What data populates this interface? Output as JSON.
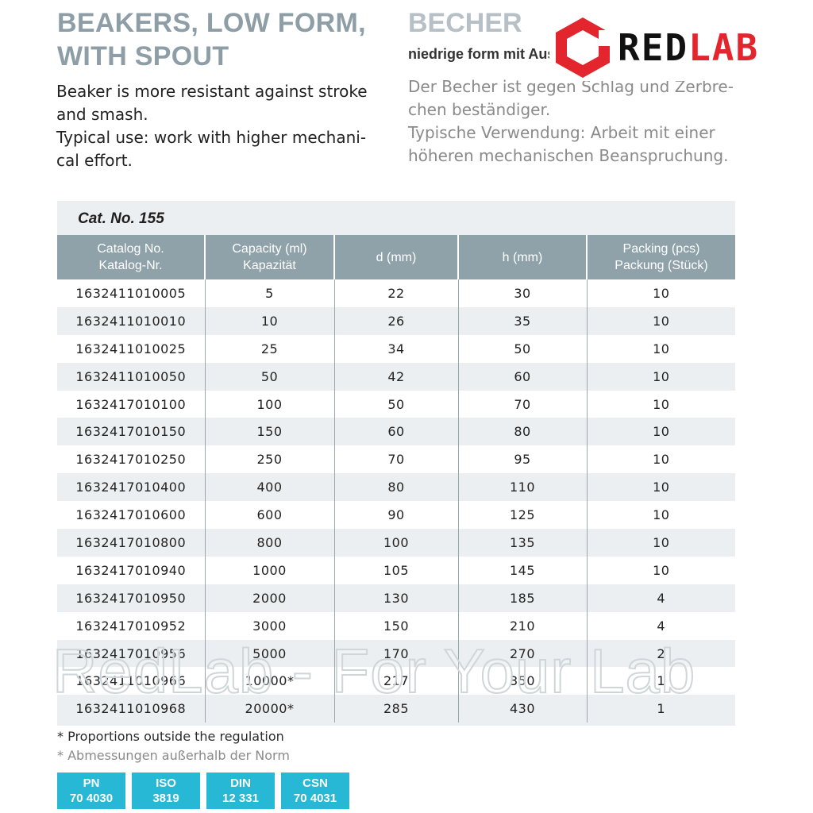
{
  "english": {
    "title_lines": [
      "BEAKERS, LOW FORM,",
      "WITH SPOUT"
    ],
    "description_lines": [
      "Beaker is more resistant against stroke",
      "and smash.",
      "Typical use: work with higher mechani-",
      "cal effort."
    ]
  },
  "german": {
    "title": "BECHER",
    "subtitle": "niedrige form mit Ausguss",
    "description_lines": [
      "Der Becher ist gegen Schlag und Zerbre-",
      "chen beständiger.",
      "Typische Verwendung: Arbeit mit einer",
      "höheren mechanischen Beanspruchung."
    ]
  },
  "logo": {
    "part1": "RED",
    "part2": "LAB",
    "accent_color": "#e3262d",
    "icon": "hexagon-logo-icon"
  },
  "table": {
    "cat_title": "Cat. No. 155",
    "headers": [
      [
        "Catalog No.",
        "Katalog-Nr."
      ],
      [
        "Capacity (ml)",
        "Kapazität"
      ],
      [
        "d (mm)"
      ],
      [
        "h (mm)"
      ],
      [
        "Packing (pcs)",
        "Packung (Stück)"
      ]
    ],
    "rows": [
      [
        "1632411010005",
        "5",
        "22",
        "30",
        "10"
      ],
      [
        "1632411010010",
        "10",
        "26",
        "35",
        "10"
      ],
      [
        "1632411010025",
        "25",
        "34",
        "50",
        "10"
      ],
      [
        "1632411010050",
        "50",
        "42",
        "60",
        "10"
      ],
      [
        "1632417010100",
        "100",
        "50",
        "70",
        "10"
      ],
      [
        "1632417010150",
        "150",
        "60",
        "80",
        "10"
      ],
      [
        "1632417010250",
        "250",
        "70",
        "95",
        "10"
      ],
      [
        "1632417010400",
        "400",
        "80",
        "110",
        "10"
      ],
      [
        "1632417010600",
        "600",
        "90",
        "125",
        "10"
      ],
      [
        "1632417010800",
        "800",
        "100",
        "135",
        "10"
      ],
      [
        "1632417010940",
        "1000",
        "105",
        "145",
        "10"
      ],
      [
        "1632417010950",
        "2000",
        "130",
        "185",
        "4"
      ],
      [
        "1632417010952",
        "3000",
        "150",
        "210",
        "4"
      ],
      [
        "1632417010956",
        "5000",
        "170",
        "270",
        "2"
      ],
      [
        "1632411010966",
        "10000*",
        "217",
        "350",
        "1"
      ],
      [
        "1632411010968",
        "20000*",
        "285",
        "430",
        "1"
      ]
    ],
    "header_color": "#8fa2aa"
  },
  "watermark": "RedLab - For Your Lab",
  "notes": {
    "en": "* Proportions outside the regulation",
    "de": "* Abmessungen außerhalb der Norm"
  },
  "standards": [
    {
      "name": "PN",
      "number": "70 4030"
    },
    {
      "name": "ISO",
      "number": "3819"
    },
    {
      "name": "DIN",
      "number": "12 331"
    },
    {
      "name": "CSN",
      "number": "70 4031"
    }
  ],
  "badge_color": "#27b8d5"
}
